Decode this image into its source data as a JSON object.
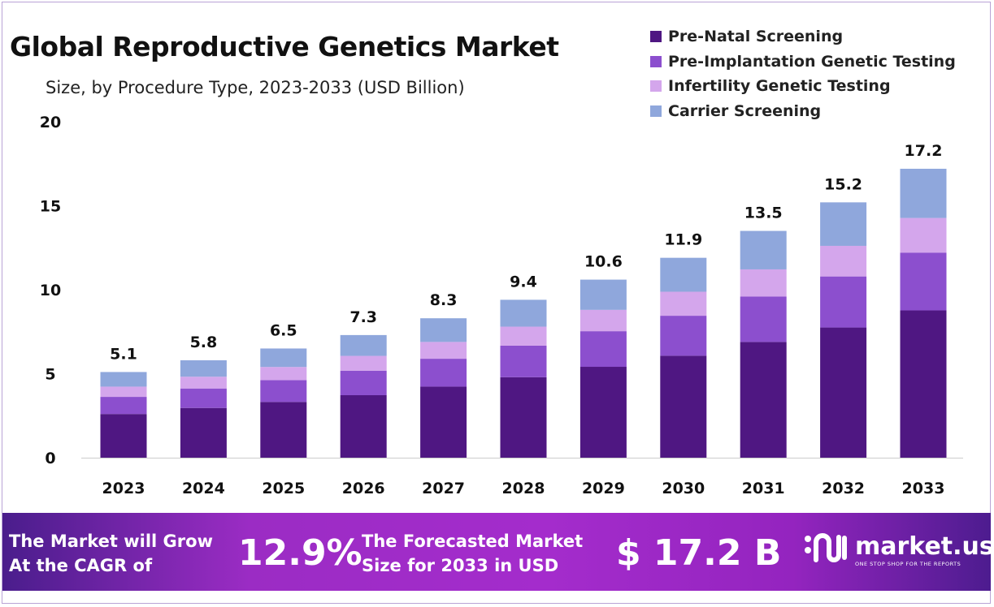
{
  "title": "Global Reproductive Genetics Market",
  "subtitle": "Size, by Procedure  Type, 2023-2033 (USD Billion)",
  "chart_data": {
    "type": "bar",
    "stacked": true,
    "categories": [
      "2023",
      "2024",
      "2025",
      "2026",
      "2027",
      "2028",
      "2029",
      "2030",
      "2031",
      "2032",
      "2033"
    ],
    "series": [
      {
        "name": "Pre-Natal Screening",
        "color": "#4f1782",
        "values": [
          2.6,
          2.96,
          3.32,
          3.72,
          4.23,
          4.79,
          5.41,
          6.07,
          6.89,
          7.75,
          8.77
        ]
      },
      {
        "name": "Pre-Implantation Genetic Testing",
        "color": "#8c4fce",
        "values": [
          1.02,
          1.16,
          1.3,
          1.46,
          1.66,
          1.88,
          2.12,
          2.38,
          2.7,
          3.04,
          3.44
        ]
      },
      {
        "name": "Infertility Genetic Testing",
        "color": "#d4a6ec",
        "values": [
          0.61,
          0.7,
          0.78,
          0.88,
          1.0,
          1.13,
          1.27,
          1.43,
          1.62,
          1.82,
          2.06
        ]
      },
      {
        "name": "Carrier Screening",
        "color": "#8fa7dc",
        "values": [
          0.87,
          0.98,
          1.1,
          1.24,
          1.41,
          1.6,
          1.8,
          2.02,
          2.29,
          2.59,
          2.93
        ]
      }
    ],
    "totals": [
      "5.1",
      "5.8",
      "6.5",
      "7.3",
      "8.3",
      "9.4",
      "10.6",
      "11.9",
      "13.5",
      "15.2",
      "17.2"
    ],
    "ylim": [
      0,
      20
    ],
    "yticks": [
      "0",
      "5",
      "10",
      "15",
      "20"
    ],
    "grid": false,
    "legend_position": "top-right"
  },
  "banner": {
    "cagr_text_1": "The Market will Grow",
    "cagr_text_2": "At the CAGR of",
    "cagr_value": "12.9%",
    "forecast_text_1": "The Forecasted Market",
    "forecast_text_2": "Size for 2033 in USD",
    "forecast_value": "$ 17.2 B",
    "logo_name": "market.us",
    "logo_tagline": "ONE STOP SHOP FOR THE REPORTS"
  }
}
